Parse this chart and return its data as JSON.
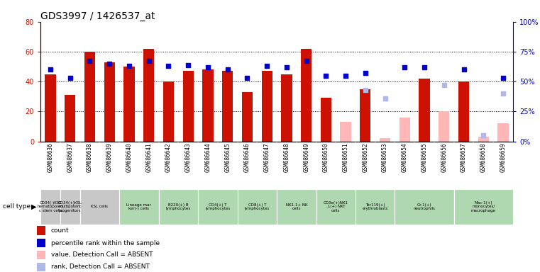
{
  "title": "GDS3997 / 1426537_at",
  "samples": [
    "GSM686636",
    "GSM686637",
    "GSM686638",
    "GSM686639",
    "GSM686640",
    "GSM686641",
    "GSM686642",
    "GSM686643",
    "GSM686644",
    "GSM686645",
    "GSM686646",
    "GSM686647",
    "GSM686648",
    "GSM686649",
    "GSM686650",
    "GSM686651",
    "GSM686652",
    "GSM686653",
    "GSM686654",
    "GSM686655",
    "GSM686656",
    "GSM686657",
    "GSM686658",
    "GSM686659"
  ],
  "bar_values": [
    45,
    31,
    60,
    53,
    50,
    62,
    40,
    47,
    48,
    47,
    33,
    47,
    45,
    62,
    29,
    null,
    35,
    null,
    null,
    42,
    null,
    40,
    null,
    null
  ],
  "bar_absent_values": [
    null,
    null,
    null,
    null,
    null,
    null,
    null,
    null,
    null,
    null,
    null,
    null,
    null,
    null,
    null,
    13,
    null,
    2,
    16,
    null,
    20,
    null,
    3,
    12
  ],
  "percentile_present": [
    60,
    53,
    67,
    65,
    63,
    67,
    63,
    64,
    62,
    60,
    53,
    63,
    62,
    67,
    55,
    55,
    57,
    null,
    62,
    62,
    null,
    60,
    null,
    53
  ],
  "percentile_absent": [
    null,
    null,
    null,
    null,
    null,
    null,
    null,
    null,
    null,
    null,
    null,
    null,
    null,
    null,
    null,
    null,
    43,
    36,
    null,
    null,
    47,
    null,
    5,
    40
  ],
  "cell_type_groups": [
    {
      "label": "CD34(-)KSL\nhematopoieti\nc stem cells",
      "start": 0,
      "end": 1,
      "color": "#c8c8c8"
    },
    {
      "label": "CD34(+)KSL\nmultipotent\nprogenitors",
      "start": 1,
      "end": 2,
      "color": "#c8c8c8"
    },
    {
      "label": "KSL cells",
      "start": 2,
      "end": 4,
      "color": "#c8c8c8"
    },
    {
      "label": "Lineage mar\nker(-) cells",
      "start": 4,
      "end": 6,
      "color": "#b0d8b0"
    },
    {
      "label": "B220(+) B\nlymphocytes",
      "start": 6,
      "end": 8,
      "color": "#b0d8b0"
    },
    {
      "label": "CD4(+) T\nlymphocytes",
      "start": 8,
      "end": 10,
      "color": "#b0d8b0"
    },
    {
      "label": "CD8(+) T\nlymphocytes",
      "start": 10,
      "end": 12,
      "color": "#b0d8b0"
    },
    {
      "label": "NK1.1+ NK\ncells",
      "start": 12,
      "end": 14,
      "color": "#b0d8b0"
    },
    {
      "label": "CD3e(+)NK1\n.1(+) NKT\ncells",
      "start": 14,
      "end": 16,
      "color": "#b0d8b0"
    },
    {
      "label": "Ter119(+)\nerythroblasts",
      "start": 16,
      "end": 18,
      "color": "#b0d8b0"
    },
    {
      "label": "Gr-1(+)\nneutrophils",
      "start": 18,
      "end": 21,
      "color": "#b0d8b0"
    },
    {
      "label": "Mac-1(+)\nmonocytes/\nmacrophage",
      "start": 21,
      "end": 24,
      "color": "#b0d8b0"
    }
  ],
  "ylim_left": [
    0,
    80
  ],
  "ylim_right": [
    0,
    100
  ],
  "yticks_left": [
    0,
    20,
    40,
    60,
    80
  ],
  "yticks_right": [
    0,
    25,
    50,
    75,
    100
  ],
  "color_bar_present": "#cc1100",
  "color_bar_absent": "#ffb6b6",
  "color_dot_present": "#0000cc",
  "color_dot_absent": "#b0b8e8",
  "bar_width": 0.55,
  "dot_size": 15,
  "title_fontsize": 10
}
